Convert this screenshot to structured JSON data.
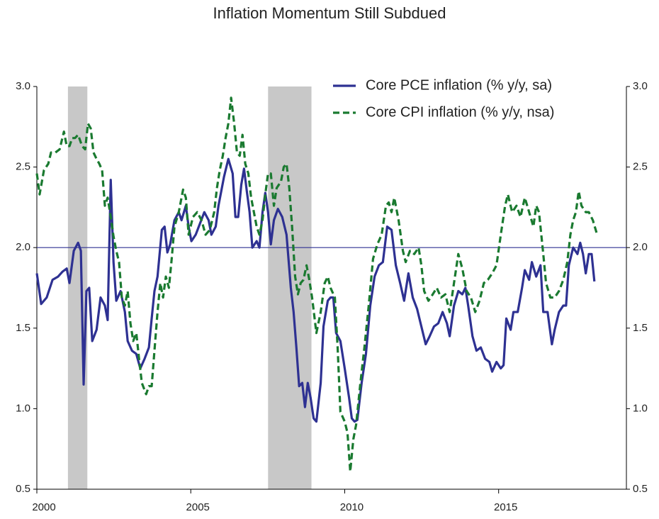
{
  "chart_data": {
    "type": "line",
    "title": "Inflation Momentum Still Subdued",
    "xlim": [
      2000,
      2019.15
    ],
    "xticks": [
      2000,
      2005,
      2010,
      2015
    ],
    "ylim": [
      0.5,
      3.0
    ],
    "yticks": [
      0.5,
      {
        "value": 1.0,
        "label": "1.0"
      },
      1.5,
      {
        "value": 2.0,
        "label": "2.0"
      },
      2.5,
      {
        "value": 3.0,
        "label": "3.0"
      }
    ],
    "y2lim": [
      0.5,
      3.0
    ],
    "y2ticks": [
      0.5,
      {
        "value": 1.0,
        "label": "1.0"
      },
      1.5,
      {
        "value": 2.0,
        "label": "2.0"
      },
      2.5,
      {
        "value": 3.0,
        "label": "3.0"
      }
    ],
    "hline": 2.0,
    "hline_color": "#2e3192",
    "shaded_periods": [
      [
        2001.01,
        2001.64
      ],
      [
        2007.51,
        2008.92
      ]
    ],
    "shade_color": "#c8c8c8",
    "legend": "upper right",
    "series": [
      {
        "name": "Core PCE inflation (% y/y, sa)",
        "color": "#2e3192",
        "dash": false,
        "x": [
          2000.0,
          2000.14,
          2000.32,
          2000.51,
          2000.69,
          2000.83,
          2000.97,
          2001.06,
          2001.2,
          2001.34,
          2001.43,
          2001.52,
          2001.61,
          2001.7,
          2001.8,
          2001.94,
          2002.07,
          2002.21,
          2002.3,
          2002.4,
          2002.49,
          2002.58,
          2002.72,
          2002.86,
          2002.95,
          2003.09,
          2003.23,
          2003.36,
          2003.5,
          2003.64,
          2003.73,
          2003.82,
          2003.92,
          2004.06,
          2004.15,
          2004.24,
          2004.33,
          2004.47,
          2004.61,
          2004.7,
          2004.84,
          2004.93,
          2005.02,
          2005.16,
          2005.3,
          2005.44,
          2005.58,
          2005.67,
          2005.81,
          2005.9,
          2005.99,
          2006.08,
          2006.22,
          2006.36,
          2006.45,
          2006.54,
          2006.64,
          2006.73,
          2006.82,
          2006.91,
          2007.0,
          2007.14,
          2007.23,
          2007.33,
          2007.42,
          2007.51,
          2007.6,
          2007.7,
          2007.83,
          2007.97,
          2008.11,
          2008.25,
          2008.34,
          2008.43,
          2008.52,
          2008.62,
          2008.71,
          2008.8,
          2008.89,
          2008.99,
          2009.08,
          2009.22,
          2009.31,
          2009.45,
          2009.54,
          2009.63,
          2009.72,
          2009.86,
          2010.0,
          2010.14,
          2010.23,
          2010.32,
          2010.41,
          2010.55,
          2010.69,
          2010.83,
          2010.97,
          2011.11,
          2011.24,
          2011.38,
          2011.52,
          2011.66,
          2011.8,
          2011.93,
          2012.07,
          2012.21,
          2012.35,
          2012.49,
          2012.63,
          2012.76,
          2012.9,
          2013.04,
          2013.18,
          2013.32,
          2013.41,
          2013.55,
          2013.69,
          2013.82,
          2013.92,
          2014.01,
          2014.15,
          2014.28,
          2014.42,
          2014.56,
          2014.7,
          2014.79,
          2014.93,
          2015.07,
          2015.16,
          2015.25,
          2015.39,
          2015.48,
          2015.62,
          2015.76,
          2015.85,
          2015.99,
          2016.08,
          2016.22,
          2016.36,
          2016.45,
          2016.59,
          2016.73,
          2016.82,
          2016.96,
          2017.1,
          2017.19,
          2017.28,
          2017.42,
          2017.56,
          2017.65,
          2017.74,
          2017.83,
          2017.93,
          2018.02,
          2018.11
        ],
        "values": [
          1.84,
          1.65,
          1.69,
          1.8,
          1.82,
          1.85,
          1.87,
          1.78,
          1.98,
          2.03,
          1.98,
          1.15,
          1.73,
          1.75,
          1.42,
          1.49,
          1.69,
          1.64,
          1.55,
          2.42,
          1.91,
          1.67,
          1.73,
          1.6,
          1.42,
          1.36,
          1.34,
          1.25,
          1.31,
          1.38,
          1.56,
          1.73,
          1.82,
          2.11,
          2.13,
          1.97,
          2.02,
          2.17,
          2.22,
          2.17,
          2.26,
          2.13,
          2.04,
          2.08,
          2.15,
          2.22,
          2.17,
          2.08,
          2.13,
          2.26,
          2.35,
          2.44,
          2.55,
          2.46,
          2.19,
          2.19,
          2.39,
          2.49,
          2.35,
          2.22,
          2.0,
          2.04,
          2.0,
          2.22,
          2.34,
          2.22,
          2.02,
          2.17,
          2.24,
          2.19,
          2.08,
          1.75,
          1.6,
          1.38,
          1.14,
          1.16,
          1.01,
          1.16,
          1.07,
          0.94,
          0.92,
          1.16,
          1.51,
          1.67,
          1.69,
          1.69,
          1.47,
          1.42,
          1.25,
          1.07,
          0.94,
          0.92,
          0.93,
          1.16,
          1.34,
          1.64,
          1.82,
          1.89,
          1.91,
          2.13,
          2.11,
          1.89,
          1.78,
          1.67,
          1.84,
          1.69,
          1.62,
          1.51,
          1.4,
          1.45,
          1.51,
          1.53,
          1.6,
          1.53,
          1.45,
          1.64,
          1.73,
          1.71,
          1.75,
          1.64,
          1.45,
          1.36,
          1.38,
          1.31,
          1.29,
          1.23,
          1.29,
          1.25,
          1.27,
          1.56,
          1.49,
          1.6,
          1.6,
          1.75,
          1.86,
          1.8,
          1.91,
          1.82,
          1.89,
          1.6,
          1.6,
          1.4,
          1.49,
          1.6,
          1.64,
          1.64,
          1.89,
          2.0,
          1.96,
          2.03,
          1.96,
          1.84,
          1.96,
          1.96,
          1.79
        ]
      },
      {
        "name": "Core CPI inflation (% y/y, nsa)",
        "color": "#1a7a30",
        "dash": true,
        "x": [
          2000.0,
          2000.09,
          2000.23,
          2000.37,
          2000.46,
          2000.6,
          2000.74,
          2000.88,
          2000.97,
          2001.06,
          2001.15,
          2001.24,
          2001.34,
          2001.47,
          2001.57,
          2001.66,
          2001.75,
          2001.84,
          2001.94,
          2002.03,
          2002.12,
          2002.21,
          2002.3,
          2002.4,
          2002.49,
          2002.58,
          2002.67,
          2002.76,
          2002.86,
          2002.95,
          2003.04,
          2003.13,
          2003.23,
          2003.32,
          2003.41,
          2003.55,
          2003.64,
          2003.73,
          2003.82,
          2003.92,
          2004.01,
          2004.1,
          2004.19,
          2004.29,
          2004.38,
          2004.47,
          2004.61,
          2004.75,
          2004.84,
          2004.93,
          2005.07,
          2005.21,
          2005.35,
          2005.48,
          2005.62,
          2005.76,
          2005.85,
          2005.94,
          2006.04,
          2006.13,
          2006.22,
          2006.31,
          2006.41,
          2006.5,
          2006.59,
          2006.68,
          2006.77,
          2006.87,
          2006.96,
          2007.05,
          2007.14,
          2007.23,
          2007.33,
          2007.42,
          2007.51,
          2007.6,
          2007.7,
          2007.79,
          2007.93,
          2008.02,
          2008.11,
          2008.2,
          2008.29,
          2008.39,
          2008.48,
          2008.57,
          2008.66,
          2008.76,
          2008.85,
          2008.94,
          2009.08,
          2009.22,
          2009.35,
          2009.45,
          2009.54,
          2009.68,
          2009.77,
          2009.86,
          2010.0,
          2010.09,
          2010.18,
          2010.28,
          2010.37,
          2010.51,
          2010.64,
          2010.78,
          2010.92,
          2011.06,
          2011.2,
          2011.34,
          2011.43,
          2011.52,
          2011.61,
          2011.75,
          2011.89,
          2011.98,
          2012.12,
          2012.26,
          2012.4,
          2012.49,
          2012.58,
          2012.72,
          2012.86,
          2012.99,
          2013.13,
          2013.27,
          2013.41,
          2013.55,
          2013.69,
          2013.82,
          2013.96,
          2014.1,
          2014.24,
          2014.38,
          2014.52,
          2014.65,
          2014.79,
          2014.93,
          2015.07,
          2015.21,
          2015.3,
          2015.44,
          2015.58,
          2015.71,
          2015.85,
          2015.99,
          2016.13,
          2016.22,
          2016.31,
          2016.45,
          2016.54,
          2016.68,
          2016.82,
          2016.96,
          2017.1,
          2017.23,
          2017.33,
          2017.42,
          2017.51,
          2017.6,
          2017.69,
          2017.83,
          2017.93,
          2018.06,
          2018.2
        ],
        "values": [
          2.46,
          2.33,
          2.48,
          2.52,
          2.59,
          2.59,
          2.61,
          2.72,
          2.63,
          2.63,
          2.68,
          2.68,
          2.7,
          2.63,
          2.61,
          2.77,
          2.74,
          2.59,
          2.55,
          2.52,
          2.48,
          2.26,
          2.31,
          2.19,
          2.07,
          1.98,
          1.91,
          1.69,
          1.64,
          1.73,
          1.53,
          1.42,
          1.47,
          1.31,
          1.16,
          1.09,
          1.14,
          1.14,
          1.36,
          1.6,
          1.78,
          1.69,
          1.82,
          1.75,
          1.93,
          2.13,
          2.22,
          2.36,
          2.31,
          2.08,
          2.19,
          2.22,
          2.17,
          2.08,
          2.11,
          2.22,
          2.37,
          2.48,
          2.57,
          2.68,
          2.77,
          2.93,
          2.77,
          2.59,
          2.57,
          2.7,
          2.52,
          2.46,
          2.31,
          2.22,
          2.13,
          2.08,
          2.17,
          2.33,
          2.46,
          2.46,
          2.26,
          2.37,
          2.41,
          2.5,
          2.52,
          2.37,
          2.13,
          1.82,
          1.71,
          1.78,
          1.8,
          1.89,
          1.8,
          1.69,
          1.47,
          1.6,
          1.78,
          1.82,
          1.75,
          1.69,
          1.38,
          0.98,
          0.92,
          0.85,
          0.61,
          0.81,
          0.9,
          1.16,
          1.38,
          1.64,
          1.93,
          2.02,
          2.08,
          2.26,
          2.28,
          2.22,
          2.31,
          2.17,
          1.98,
          1.91,
          1.98,
          1.96,
          2.0,
          1.89,
          1.73,
          1.67,
          1.71,
          1.75,
          1.69,
          1.71,
          1.6,
          1.78,
          1.96,
          1.87,
          1.73,
          1.69,
          1.6,
          1.67,
          1.78,
          1.8,
          1.84,
          1.89,
          2.08,
          2.26,
          2.33,
          2.22,
          2.26,
          2.19,
          2.31,
          2.22,
          2.13,
          2.26,
          2.22,
          1.96,
          1.78,
          1.69,
          1.69,
          1.73,
          1.8,
          1.91,
          2.08,
          2.17,
          2.22,
          2.35,
          2.26,
          2.22,
          2.22,
          2.17,
          2.08
        ]
      }
    ]
  }
}
